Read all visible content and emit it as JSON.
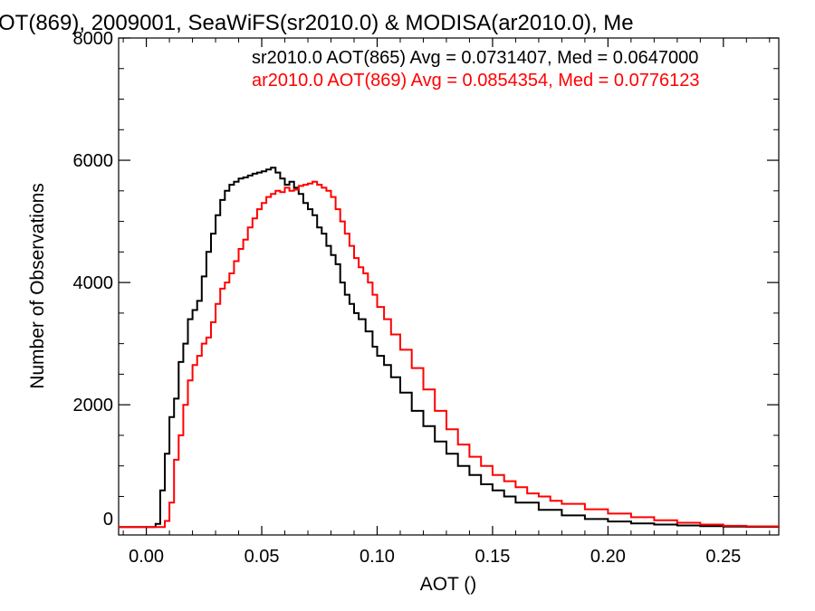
{
  "chart_data": {
    "type": "line",
    "title": "OT(869), 2009001, SeaWiFS(sr2010.0) & MODISA(ar2010.0), Me",
    "xlabel": "AOT ()",
    "ylabel": "Number of Observations",
    "xlim": [
      -0.012,
      0.274
    ],
    "ylim": [
      -130,
      8000
    ],
    "xticks": [
      0.0,
      0.05,
      0.1,
      0.15,
      0.2,
      0.25
    ],
    "xtick_labels": [
      "0.00",
      "0.05",
      "0.10",
      "0.15",
      "0.20",
      "0.25"
    ],
    "yticks": [
      0,
      2000,
      4000,
      6000,
      8000
    ],
    "ytick_labels": [
      "0",
      "2000",
      "4000",
      "6000",
      "8000"
    ],
    "grid": false,
    "legend_position": "top-right",
    "series": [
      {
        "name": "sr2010.0 AOT(865) Avg = 0.0731407, Med = 0.0647000",
        "color": "#000000",
        "x": [
          -0.012,
          0.0,
          0.004,
          0.006,
          0.008,
          0.01,
          0.012,
          0.014,
          0.016,
          0.018,
          0.02,
          0.022,
          0.024,
          0.026,
          0.028,
          0.03,
          0.032,
          0.034,
          0.036,
          0.038,
          0.04,
          0.042,
          0.044,
          0.046,
          0.048,
          0.05,
          0.052,
          0.054,
          0.056,
          0.058,
          0.06,
          0.062,
          0.064,
          0.066,
          0.068,
          0.07,
          0.072,
          0.074,
          0.076,
          0.078,
          0.08,
          0.082,
          0.084,
          0.086,
          0.088,
          0.09,
          0.092,
          0.095,
          0.098,
          0.1,
          0.103,
          0.106,
          0.11,
          0.115,
          0.12,
          0.125,
          0.13,
          0.135,
          0.14,
          0.145,
          0.15,
          0.155,
          0.16,
          0.17,
          0.18,
          0.19,
          0.2,
          0.21,
          0.22,
          0.23,
          0.24,
          0.25,
          0.26,
          0.274
        ],
        "y": [
          0,
          0,
          50,
          600,
          1200,
          1800,
          2100,
          2700,
          3000,
          3400,
          3550,
          3700,
          4100,
          4500,
          4800,
          5100,
          5350,
          5500,
          5600,
          5650,
          5700,
          5720,
          5750,
          5780,
          5800,
          5820,
          5850,
          5880,
          5800,
          5700,
          5600,
          5650,
          5550,
          5450,
          5300,
          5200,
          5100,
          4900,
          4800,
          4600,
          4450,
          4300,
          4000,
          3800,
          3650,
          3500,
          3400,
          3200,
          2950,
          2800,
          2650,
          2450,
          2200,
          1900,
          1650,
          1400,
          1200,
          1000,
          850,
          700,
          600,
          500,
          400,
          280,
          190,
          130,
          90,
          60,
          40,
          25,
          15,
          8,
          4,
          0
        ]
      },
      {
        "name": "ar2010.0 AOT(869) Avg = 0.0854354, Med = 0.0776123",
        "color": "#ff0000",
        "x": [
          -0.012,
          0.006,
          0.008,
          0.01,
          0.012,
          0.014,
          0.016,
          0.018,
          0.02,
          0.022,
          0.024,
          0.026,
          0.028,
          0.03,
          0.032,
          0.034,
          0.036,
          0.038,
          0.04,
          0.042,
          0.044,
          0.046,
          0.048,
          0.05,
          0.052,
          0.054,
          0.056,
          0.058,
          0.06,
          0.062,
          0.064,
          0.066,
          0.068,
          0.07,
          0.072,
          0.074,
          0.076,
          0.078,
          0.08,
          0.082,
          0.084,
          0.086,
          0.088,
          0.09,
          0.092,
          0.094,
          0.096,
          0.098,
          0.1,
          0.103,
          0.106,
          0.11,
          0.115,
          0.12,
          0.125,
          0.13,
          0.135,
          0.14,
          0.145,
          0.15,
          0.155,
          0.16,
          0.165,
          0.17,
          0.175,
          0.18,
          0.19,
          0.2,
          0.21,
          0.22,
          0.23,
          0.24,
          0.25,
          0.26,
          0.274
        ],
        "y": [
          0,
          0,
          100,
          400,
          1100,
          1500,
          2000,
          2400,
          2650,
          2800,
          3000,
          3100,
          3350,
          3650,
          3900,
          4000,
          4150,
          4350,
          4550,
          4700,
          4900,
          5050,
          5200,
          5300,
          5400,
          5450,
          5500,
          5480,
          5550,
          5500,
          5520,
          5580,
          5600,
          5620,
          5650,
          5600,
          5550,
          5500,
          5400,
          5200,
          5000,
          4800,
          4600,
          4400,
          4250,
          4150,
          4000,
          3800,
          3600,
          3400,
          3150,
          2900,
          2600,
          2250,
          1900,
          1600,
          1350,
          1150,
          1000,
          850,
          750,
          650,
          550,
          500,
          430,
          380,
          290,
          220,
          160,
          110,
          70,
          40,
          20,
          10,
          0
        ]
      }
    ]
  }
}
